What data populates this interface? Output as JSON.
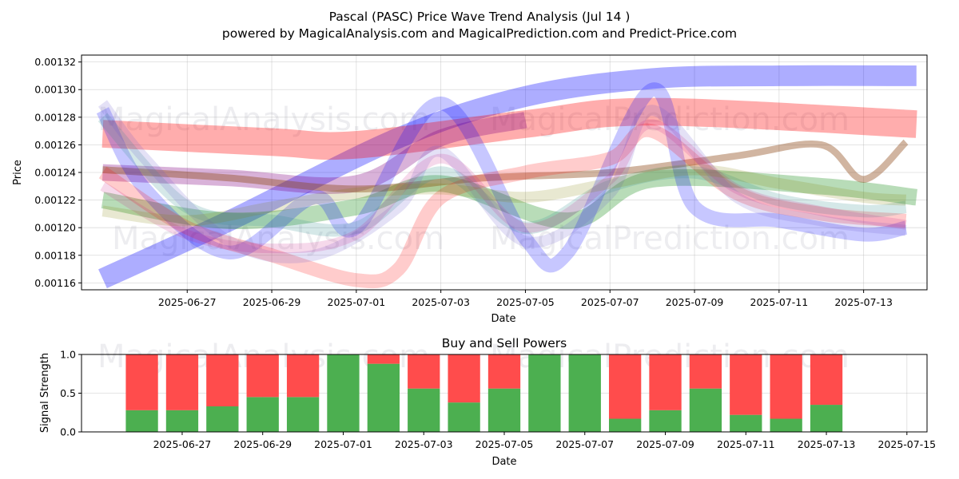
{
  "chart_data": [
    {
      "type": "area",
      "title": "Pascal (PASC) Price Wave Trend Analysis (Jul 14 )",
      "subtitle": "powered by MagicalAnalysis.com and MagicalPrediction.com and Predict-Price.com",
      "xlabel": "Date",
      "ylabel": "Price",
      "xlim": [
        "2025-06-24T12:00",
        "2025-07-14T12:00"
      ],
      "ylim": [
        0.001155,
        0.001325
      ],
      "grid": true,
      "yticks": [
        "0.00116",
        "0.00118",
        "0.00120",
        "0.00122",
        "0.00124",
        "0.00126",
        "0.00128",
        "0.00130",
        "0.00132"
      ],
      "xticks": [
        "2025-06-27",
        "2025-06-29",
        "2025-07-01",
        "2025-07-03",
        "2025-07-05",
        "2025-07-07",
        "2025-07-09",
        "2025-07-11",
        "2025-07-13"
      ],
      "watermarks": [
        "MagicalAnalysis.com",
        "MagicalPrediction.com"
      ],
      "series": [
        {
          "name": "blue trend",
          "color": "#0000ff",
          "opacity": 0.32,
          "width": 1.5e-05,
          "x": [
            "2025-06-25",
            "2025-06-28",
            "2025-07-02",
            "2025-07-05",
            "2025-07-08",
            "2025-07-11",
            "2025-07-14T06:00"
          ],
          "y": [
            0.001163,
            0.001205,
            0.001265,
            0.001295,
            0.001308,
            0.00131,
            0.00131
          ]
        },
        {
          "name": "red upper trend",
          "color": "#ff0000",
          "opacity": 0.32,
          "width": 2e-05,
          "x": [
            "2025-06-25",
            "2025-06-29",
            "2025-07-01",
            "2025-07-05",
            "2025-07-08",
            "2025-07-14T06:00"
          ],
          "y": [
            0.001268,
            0.001262,
            0.00126,
            0.001275,
            0.001284,
            0.001275
          ]
        },
        {
          "name": "purple trend",
          "color": "#800080",
          "opacity": 0.3,
          "width": 1.2e-05,
          "x": [
            "2025-06-25",
            "2025-06-28",
            "2025-07-01",
            "2025-07-03",
            "2025-07-05"
          ],
          "y": [
            0.00124,
            0.001236,
            0.001232,
            0.001265,
            0.001278
          ]
        },
        {
          "name": "green trend",
          "color": "#008000",
          "opacity": 0.28,
          "width": 1.2e-05,
          "x": [
            "2025-06-25",
            "2025-06-28",
            "2025-07-01",
            "2025-07-03",
            "2025-07-06",
            "2025-07-08",
            "2025-07-12",
            "2025-07-14T06:00"
          ],
          "y": [
            0.00122,
            0.001205,
            0.001215,
            0.001232,
            0.001205,
            0.001235,
            0.00123,
            0.001222
          ]
        },
        {
          "name": "brown trend",
          "color": "#8b4513",
          "opacity": 0.4,
          "width": 5e-06,
          "x": [
            "2025-06-25",
            "2025-06-28",
            "2025-07-01",
            "2025-07-04",
            "2025-07-07",
            "2025-07-10",
            "2025-07-12",
            "2025-07-13",
            "2025-07-14"
          ],
          "y": [
            0.001242,
            0.001236,
            0.001228,
            0.001236,
            0.00124,
            0.001252,
            0.00126,
            0.001235,
            0.001262
          ]
        },
        {
          "name": "blue wave",
          "color": "#0000ff",
          "opacity": 0.22,
          "width": 1e-05,
          "x": [
            "2025-06-25",
            "2025-06-26",
            "2025-06-28",
            "2025-06-30",
            "2025-07-01",
            "2025-07-03",
            "2025-07-05",
            "2025-07-06",
            "2025-07-08",
            "2025-07-09",
            "2025-07-11",
            "2025-07-13",
            "2025-07-14"
          ],
          "y": [
            0.001285,
            0.001228,
            0.001182,
            0.001222,
            0.0012,
            0.00129,
            0.001192,
            0.001182,
            0.0013,
            0.001215,
            0.001205,
            0.001195,
            0.0012
          ]
        },
        {
          "name": "red wave",
          "color": "#ff0000",
          "opacity": 0.2,
          "width": 1e-05,
          "x": [
            "2025-06-25",
            "2025-06-27",
            "2025-06-29",
            "2025-07-01",
            "2025-07-02",
            "2025-07-03",
            "2025-07-05",
            "2025-07-07",
            "2025-07-08",
            "2025-07-10",
            "2025-07-12",
            "2025-07-14"
          ],
          "y": [
            0.00124,
            0.0012,
            0.00118,
            0.001162,
            0.00117,
            0.001222,
            0.00124,
            0.00125,
            0.00127,
            0.001225,
            0.00121,
            0.001205
          ]
        },
        {
          "name": "teal wave",
          "color": "#2e8b8b",
          "opacity": 0.2,
          "width": 9e-06,
          "x": [
            "2025-06-25",
            "2025-06-27",
            "2025-06-29",
            "2025-07-01",
            "2025-07-03",
            "2025-07-05",
            "2025-07-07",
            "2025-07-09",
            "2025-07-11",
            "2025-07-13",
            "2025-07-14"
          ],
          "y": [
            0.00128,
            0.001215,
            0.001205,
            0.0012,
            0.00124,
            0.0012,
            0.00123,
            0.00124,
            0.00122,
            0.001212,
            0.001215
          ]
        },
        {
          "name": "violet wave",
          "color": "#6a5acd",
          "opacity": 0.18,
          "width": 8e-06,
          "x": [
            "2025-06-25",
            "2025-06-26",
            "2025-06-28",
            "2025-06-30",
            "2025-07-02",
            "2025-07-03",
            "2025-07-05",
            "2025-07-07",
            "2025-07-08",
            "2025-07-10",
            "2025-07-12",
            "2025-07-14"
          ],
          "y": [
            0.00129,
            0.00125,
            0.00119,
            0.00118,
            0.001215,
            0.001255,
            0.00119,
            0.001225,
            0.001285,
            0.001222,
            0.001205,
            0.001198
          ]
        },
        {
          "name": "magenta wave",
          "color": "#c71585",
          "opacity": 0.16,
          "width": 7e-06,
          "x": [
            "2025-06-25",
            "2025-06-27",
            "2025-06-29",
            "2025-07-01",
            "2025-07-03",
            "2025-07-05",
            "2025-07-07",
            "2025-07-08",
            "2025-07-10",
            "2025-07-12",
            "2025-07-14"
          ],
          "y": [
            0.00123,
            0.001195,
            0.001185,
            0.001195,
            0.00125,
            0.0012,
            0.001235,
            0.001275,
            0.001228,
            0.001212,
            0.001202
          ]
        },
        {
          "name": "olive wave",
          "color": "#808000",
          "opacity": 0.18,
          "width": 8e-06,
          "x": [
            "2025-06-25",
            "2025-06-27",
            "2025-06-29",
            "2025-07-01",
            "2025-07-03",
            "2025-07-05",
            "2025-07-07",
            "2025-07-09",
            "2025-07-11",
            "2025-07-13",
            "2025-07-14"
          ],
          "y": [
            0.001212,
            0.001205,
            0.001215,
            0.001225,
            0.001228,
            0.001222,
            0.001232,
            0.001242,
            0.001232,
            0.001222,
            0.00122
          ]
        }
      ]
    },
    {
      "type": "bar",
      "title": "Buy and Sell Powers",
      "xlabel": "Date",
      "ylabel": "Signal Strength",
      "ylim": [
        0,
        1
      ],
      "yticks": [
        "0.0",
        "0.5",
        "1.0"
      ],
      "xticks": [
        "2025-06-27",
        "2025-06-29",
        "2025-07-01",
        "2025-07-03",
        "2025-07-05",
        "2025-07-07",
        "2025-07-09",
        "2025-07-11",
        "2025-07-13",
        "2025-07-15"
      ],
      "categories": [
        "2025-06-26",
        "2025-06-27",
        "2025-06-28",
        "2025-06-29",
        "2025-06-30",
        "2025-07-01",
        "2025-07-02",
        "2025-07-03",
        "2025-07-04",
        "2025-07-05",
        "2025-07-06",
        "2025-07-07",
        "2025-07-08",
        "2025-07-09",
        "2025-07-10",
        "2025-07-11",
        "2025-07-12",
        "2025-07-13"
      ],
      "series": [
        {
          "name": "Buy Power",
          "color": "#4caf50",
          "values": [
            0.28,
            0.28,
            0.33,
            0.45,
            0.45,
            1.0,
            0.88,
            0.56,
            0.38,
            0.56,
            1.0,
            1.0,
            0.17,
            0.28,
            0.56,
            0.22,
            0.17,
            0.35
          ]
        },
        {
          "name": "Sell Power",
          "color": "#ff4c4c",
          "values": [
            0.72,
            0.72,
            0.67,
            0.55,
            0.55,
            0.0,
            0.12,
            0.44,
            0.62,
            0.44,
            0.0,
            0.0,
            0.83,
            0.72,
            0.44,
            0.78,
            0.83,
            0.65
          ]
        }
      ]
    }
  ]
}
